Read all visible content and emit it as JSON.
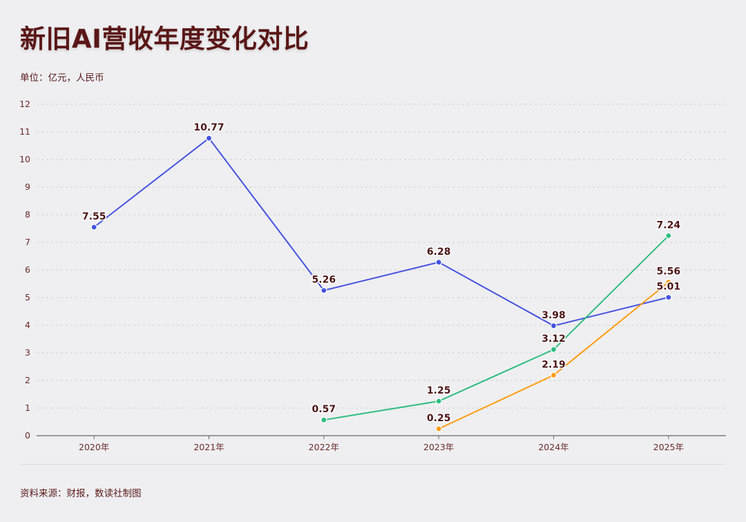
{
  "title": "新旧AI营收年度变化对比",
  "unit": "单位：亿元，人民币",
  "source": "资料来源：财报，数读社制图",
  "chart_data": {
    "type": "line",
    "title": "新旧AI营收年度变化对比",
    "xlabel": "",
    "ylabel": "",
    "ylim": [
      0,
      12
    ],
    "yticks": [
      0,
      1,
      2,
      3,
      4,
      5,
      6,
      7,
      8,
      9,
      10,
      11,
      12
    ],
    "grid": true,
    "legend": "none",
    "categories": [
      "2020年",
      "2021年",
      "2022年",
      "2023年",
      "2024年",
      "2025年"
    ],
    "series": [
      {
        "color": "#4452e0",
        "values": [
          7.55,
          10.77,
          5.26,
          6.28,
          3.98,
          5.01
        ]
      },
      {
        "color": "#2dbd7e",
        "values": [
          null,
          null,
          0.57,
          1.25,
          3.12,
          7.24
        ]
      },
      {
        "color": "#ff9b0f",
        "values": [
          null,
          null,
          null,
          0.25,
          2.19,
          5.56
        ]
      }
    ]
  }
}
